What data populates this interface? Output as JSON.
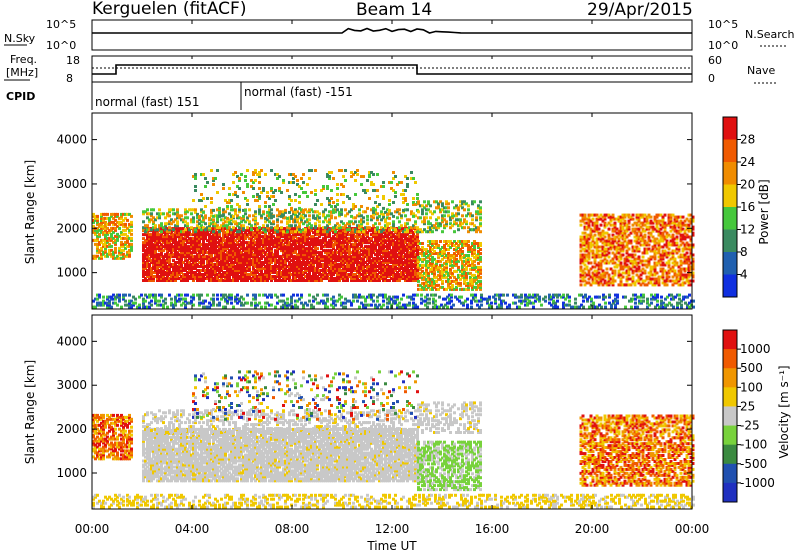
{
  "header": {
    "station": "Kerguelen (fitACF)",
    "beam": "Beam 14",
    "date": "29/Apr/2015"
  },
  "strips": {
    "nsky_label": "N.Sky",
    "nsearch_label": "N.Search",
    "noise_ticks_left": [
      "10^5",
      "10^0"
    ],
    "noise_ticks_right": [
      "10^5",
      "10^0"
    ],
    "freq_label_line1": "Freq.",
    "freq_label_line2": "[MHz]",
    "freq_ticks": [
      "18",
      "8"
    ],
    "nave_label": "Nave",
    "nave_ticks": [
      "60",
      "0"
    ],
    "cpid_label": "CPID",
    "cpid_segments": [
      "normal (fast) 151",
      "normal (fast) -151"
    ]
  },
  "colors": {
    "power_scale": [
      "#1030e0",
      "#2060b0",
      "#3a8a60",
      "#46c83c",
      "#f0c800",
      "#f08c00",
      "#f05a00",
      "#e01010"
    ],
    "velocity_scale": [
      "#e01010",
      "#f05a00",
      "#f09600",
      "#f0c800",
      "#c8c8c8",
      "#78d23c",
      "#3a8a40",
      "#2050b0",
      "#2030c0"
    ]
  },
  "chart_data": [
    {
      "type": "heatmap",
      "name": "power",
      "ylabel": "Slant Range [km]",
      "yticks": [
        "4000",
        "3000",
        "2000",
        "1000"
      ],
      "ylim": [
        180,
        4600
      ],
      "colorbar_label": "Power [dB]",
      "colorbar_ticks": [
        "28",
        "24",
        "20",
        "16",
        "12",
        "8",
        "4"
      ],
      "colorbar_range": [
        0,
        32
      ]
    },
    {
      "type": "heatmap",
      "name": "velocity",
      "ylabel": "Slant Range [km]",
      "yticks": [
        "4000",
        "3000",
        "2000",
        "1000"
      ],
      "ylim": [
        180,
        4600
      ],
      "colorbar_label": "Velocity [m s⁻¹]",
      "colorbar_ticks": [
        "1000",
        "500",
        "100",
        "25",
        "-25",
        "-100",
        "-500",
        "-1000"
      ]
    }
  ],
  "xaxis": {
    "label": "Time UT",
    "ticks": [
      "00:00",
      "04:00",
      "08:00",
      "12:00",
      "16:00",
      "20:00",
      "00:00"
    ]
  }
}
